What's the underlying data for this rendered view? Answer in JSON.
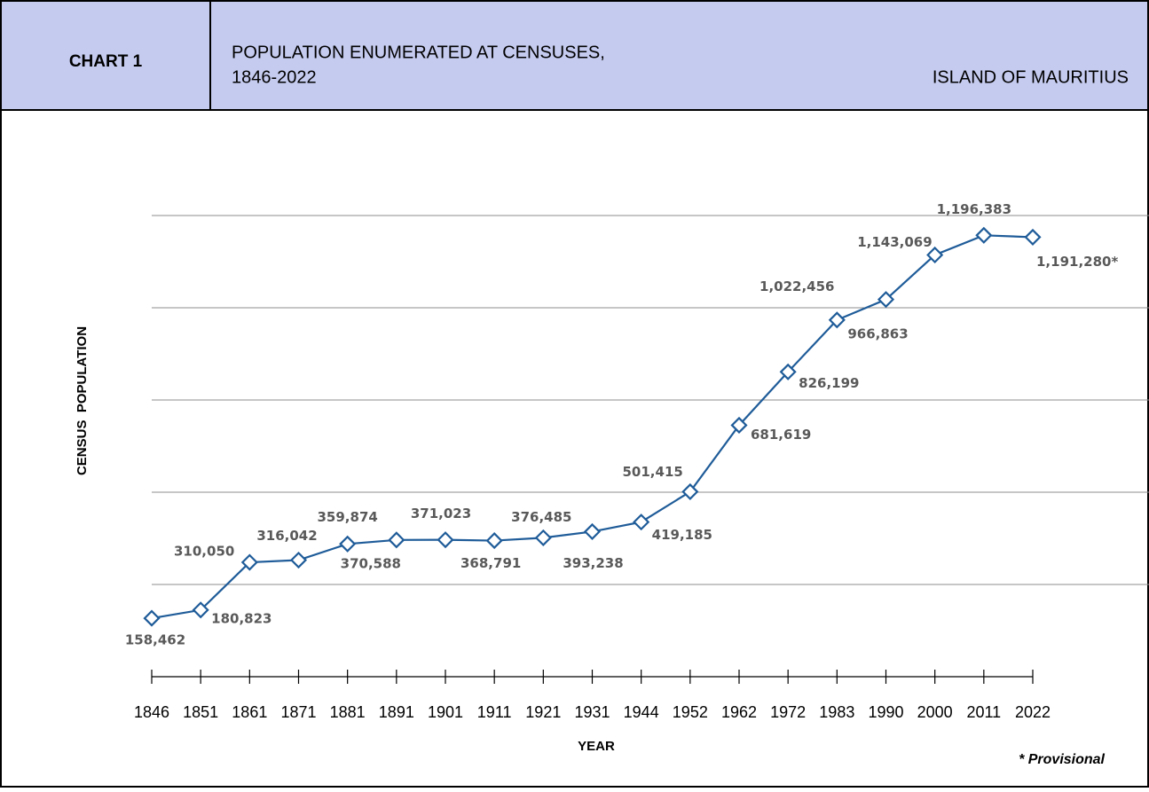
{
  "chart_data": {
    "type": "line",
    "chart_label": "CHART 1",
    "title_lines": [
      "POPULATION ENUMERATED  AT CENSUSES,",
      "1846-2022"
    ],
    "region": "ISLAND OF MAURITIUS",
    "xlabel": "YEAR",
    "ylabel": "CENSUS  POPULATION",
    "note": "* Provisional",
    "categories": [
      "1846",
      "1851",
      "1861",
      "1871",
      "1881",
      "1891",
      "1901",
      "1911",
      "1921",
      "1931",
      "1944",
      "1952",
      "1962",
      "1972",
      "1983",
      "1990",
      "2000",
      "2011",
      "2022"
    ],
    "series": [
      {
        "name": "Census population",
        "color": "#1f5c99",
        "values": [
          158462,
          180823,
          310050,
          316042,
          359874,
          370588,
          371023,
          368791,
          376485,
          393238,
          419185,
          501415,
          681619,
          826199,
          966863,
          1022456,
          1143069,
          1196383,
          1191280
        ],
        "value_labels": [
          "158,462",
          "180,823",
          "310,050",
          "316,042",
          "359,874",
          "370,588",
          "371,023",
          "368,791",
          "376,485",
          "393,238",
          "419,185",
          "501,415",
          "681,619",
          "826,199",
          "966,863",
          "1,022,456",
          "1,143,069",
          "1,196,383",
          "1,191,280*"
        ]
      }
    ],
    "ylim": [
      0,
      1250000
    ],
    "yticks": [
      250000,
      500000,
      750000,
      1000000,
      1250000
    ],
    "grid": true,
    "legend": false
  }
}
